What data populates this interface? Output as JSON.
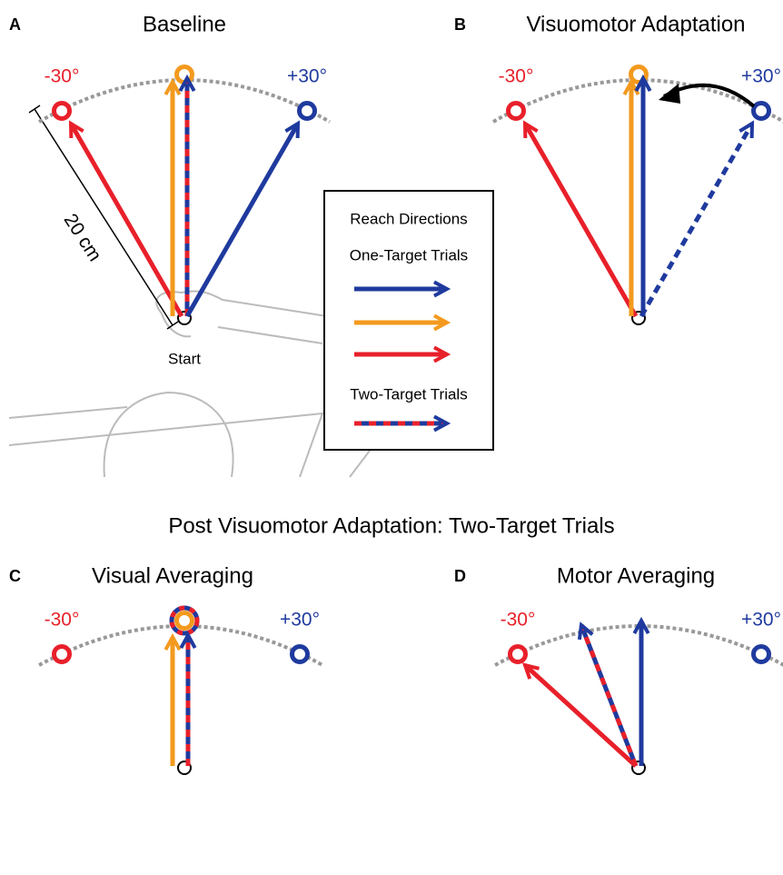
{
  "panels": [
    {
      "letter": "A",
      "title": "Baseline",
      "target_left": "-30°",
      "target_right": "+30°"
    },
    {
      "letter": "B",
      "title": "Visuomotor Adaptation",
      "target_left": "-30°",
      "target_right": "+30°"
    },
    {
      "letter": "C",
      "title": "Visual Averaging",
      "target_left": "-30°",
      "target_right": "+30°"
    },
    {
      "letter": "D",
      "title": "Motor Averaging",
      "target_left": "-30°",
      "target_right": "+30°"
    }
  ],
  "section_title": "Post Visuomotor Adaptation: Two-Target Trials",
  "annotations": {
    "distance": "20 cm",
    "start": "Start"
  },
  "legend": {
    "title": "Reach Directions",
    "one_target": "One-Target Trials",
    "two_target": "Two-Target Trials"
  }
}
